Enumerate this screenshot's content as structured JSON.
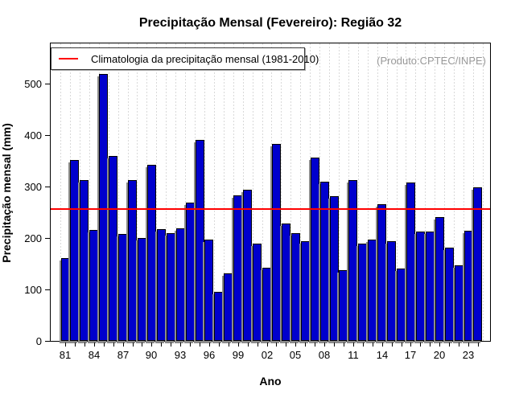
{
  "title": "Precipitação Mensal (Fevereiro): Região 32",
  "legend": {
    "label": "Climatologia da precipitação mensal (1981-2010)",
    "line_color": "#FF0000"
  },
  "annotation": "(Produto:CPTEC/INPE)",
  "xlabel": "Ano",
  "ylabel": "Precipitação mensal (mm)",
  "colors": {
    "bar": "#0000CD",
    "bar_border": "#000000",
    "climatology_line": "#FF0000",
    "grid": "#d9d9d9",
    "annotation_text": "#999999"
  },
  "chart_data": {
    "type": "bar",
    "title": "Precipitação Mensal (Fevereiro): Região 32",
    "xlabel": "Ano",
    "ylabel": "Precipitação mensal (mm)",
    "categories": [
      "81",
      "82",
      "83",
      "84",
      "85",
      "86",
      "87",
      "88",
      "89",
      "90",
      "91",
      "92",
      "93",
      "94",
      "95",
      "96",
      "97",
      "98",
      "99",
      "00",
      "01",
      "02",
      "03",
      "04",
      "05",
      "06",
      "07",
      "08",
      "09",
      "10",
      "11",
      "12",
      "13",
      "14",
      "15",
      "16",
      "17",
      "18",
      "19",
      "20",
      "21",
      "22",
      "23",
      "24"
    ],
    "values": [
      161,
      351,
      313,
      215,
      519,
      360,
      207,
      313,
      200,
      342,
      217,
      210,
      219,
      269,
      391,
      197,
      96,
      131,
      283,
      294,
      189,
      142,
      383,
      228,
      210,
      194,
      356,
      310,
      281,
      138,
      312,
      189,
      197,
      265,
      194,
      140,
      307,
      213,
      213,
      241,
      181,
      147,
      214,
      299
    ],
    "x_tick_label_every": 3,
    "x_tick_labels_shown": [
      "81",
      "84",
      "87",
      "90",
      "93",
      "96",
      "99",
      "02",
      "05",
      "08",
      "11",
      "14",
      "17",
      "20",
      "23"
    ],
    "yticks": [
      0,
      100,
      200,
      300,
      400,
      500
    ],
    "ylim": [
      0,
      578
    ],
    "grid": "vertical dotted per year",
    "legend_position": "top-left inside plot",
    "climatology_line_mm": 257,
    "climatology_label": "Climatologia da precipitação mensal (1981-2010)"
  }
}
